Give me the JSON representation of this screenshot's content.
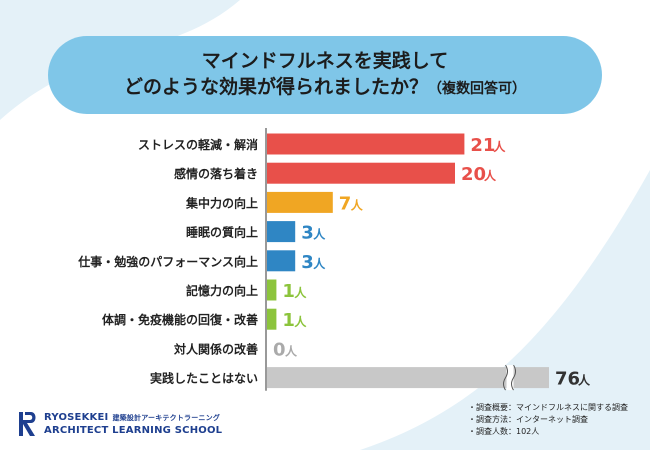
{
  "title": {
    "line1": "マインドフルネスを実践して",
    "line2": "どのような効果が得られましたか？",
    "note": "（複数回答可）"
  },
  "chart_data": {
    "type": "bar",
    "orientation": "horizontal",
    "unit": "人",
    "categories": [
      "ストレスの軽減・解消",
      "感情の落ち着き",
      "集中力の向上",
      "睡眠の質向上",
      "仕事・勉強のパフォーマンス向上",
      "記憶力の向上",
      "体調・免疫機能の回復・改善",
      "対人関係の改善",
      "実践したことはない"
    ],
    "values": [
      21,
      20,
      7,
      3,
      3,
      1,
      1,
      0,
      76
    ],
    "value_labels": [
      "21",
      "20",
      "7",
      "3",
      "3",
      "1",
      "1",
      "0",
      "76"
    ],
    "colors": [
      "#e8504a",
      "#e8504a",
      "#f0a623",
      "#2f86c4",
      "#2f86c4",
      "#8cc43c",
      "#8cc43c",
      "#aaaaaa",
      "#c8c8c8"
    ],
    "label_colors": [
      "#e8504a",
      "#e8504a",
      "#f0a623",
      "#2f86c4",
      "#2f86c4",
      "#8cc43c",
      "#8cc43c",
      "#aaaaaa",
      "#333333"
    ],
    "axis_break_on": "実践したことはない",
    "xlim": [
      0,
      21
    ]
  },
  "logo": {
    "line1": "RYOSEKKEI",
    "line1_sub": "建築設計アーキテクトラーニング",
    "line2": "ARCHITECT LEARNING SCHOOL"
  },
  "notes": [
    "・調査概要：マインドフルネスに関する調査",
    "・調査方法：インターネット調査",
    "・調査人数：102人"
  ],
  "colors": {
    "title_bg": "#7fc6e8",
    "bg_shape": "#e4f1f8",
    "brand": "#1e3f8f"
  }
}
